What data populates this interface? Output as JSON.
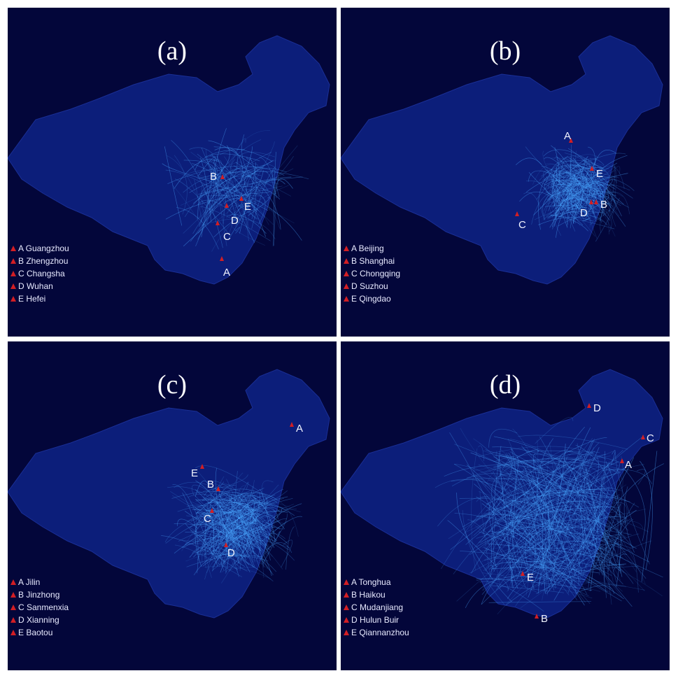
{
  "colors": {
    "background": "#03063a",
    "landmass": "#0c1e7a",
    "flow": "#4aa8ff",
    "marker": "#d21e24",
    "separator": "#ffffff"
  },
  "panels": [
    {
      "title": "(a)",
      "legend": [
        {
          "letter": "A",
          "name": "A Guangzhou"
        },
        {
          "letter": "B",
          "name": "B Zhengzhou"
        },
        {
          "letter": "C",
          "name": "C Changsha"
        },
        {
          "letter": "D",
          "name": "D Wuhan"
        },
        {
          "letter": "E",
          "name": "E Hefei"
        }
      ]
    },
    {
      "title": "(b)",
      "legend": [
        {
          "letter": "A",
          "name": "A Beijing"
        },
        {
          "letter": "B",
          "name": "B Shanghai"
        },
        {
          "letter": "C",
          "name": "C Chongqing"
        },
        {
          "letter": "D",
          "name": "D Suzhou"
        },
        {
          "letter": "E",
          "name": "E Qingdao"
        }
      ]
    },
    {
      "title": "(c)",
      "legend": [
        {
          "letter": "A",
          "name": "A Jilin"
        },
        {
          "letter": "B",
          "name": "B Jinzhong"
        },
        {
          "letter": "C",
          "name": "C Sanmenxia"
        },
        {
          "letter": "D",
          "name": "D Xianning"
        },
        {
          "letter": "E",
          "name": "E Baotou"
        }
      ]
    },
    {
      "title": "(d)",
      "legend": [
        {
          "letter": "A",
          "name": "A Tonghua"
        },
        {
          "letter": "B",
          "name": "B Haikou"
        },
        {
          "letter": "C",
          "name": "C Mudanjiang"
        },
        {
          "letter": "D",
          "name": "D Hulun Buir"
        },
        {
          "letter": "E",
          "name": "E Qiannanzhou"
        }
      ]
    }
  ]
}
